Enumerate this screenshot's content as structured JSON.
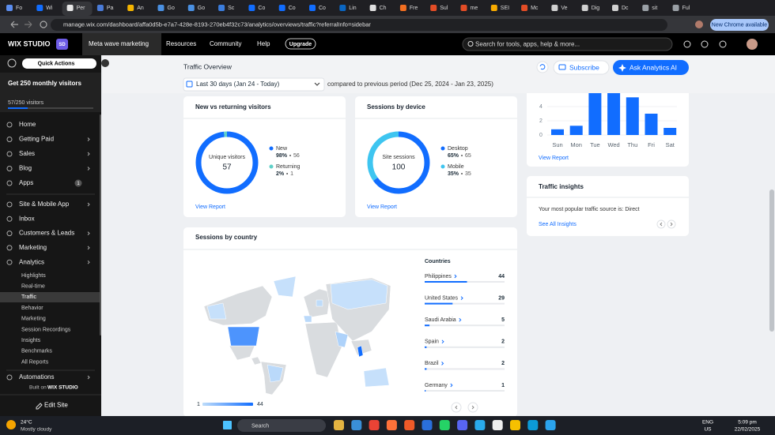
{
  "browser": {
    "tabs": [
      "Fo",
      "Wi",
      "Per",
      "Pa",
      "An",
      "Go",
      "Go",
      "Sc",
      "Co",
      "Co",
      "Co",
      "Lin",
      "Ch",
      "Fre",
      "Sul",
      "me",
      "SEI",
      "Mc",
      "Ve",
      "Dig",
      "Dc",
      "sit",
      "Ful"
    ],
    "url": "manage.wix.com/dashboard/affa0d5b-e7a7-428e-8193-270eb4f32c73/analytics/overviews/traffic?referralInfo=sidebar",
    "update_button": "New Chrome available"
  },
  "topbar": {
    "brand": "WIX STUDIO",
    "workspace": "SD",
    "site": "Meta wave marketing",
    "menu": [
      "Resources",
      "Community",
      "Help"
    ],
    "upgrade": "Upgrade",
    "search": "Search for tools, apps, help & more..."
  },
  "sidebar": {
    "quick_actions": "Quick Actions",
    "goal": "Get 250 monthly visitors",
    "progress": "57/250 visitors",
    "main": [
      "Home",
      "Getting Paid",
      "Sales",
      "Blog",
      "Apps"
    ],
    "apps_badge": "1",
    "business": [
      "Site & Mobile App",
      "Inbox",
      "Customers & Leads",
      "Marketing",
      "Analytics"
    ],
    "analytics": [
      "Highlights",
      "Real-time",
      "Traffic",
      "Behavior",
      "Marketing",
      "Session Recordings",
      "Insights",
      "Benchmarks",
      "All Reports"
    ],
    "more": "Automations",
    "built_on": "Built on",
    "built_brand": "WIX STUDIO",
    "edit": "Edit Site"
  },
  "header": {
    "title": "Traffic Overview",
    "date_range": "Last 30 days (Jan 24 - Today)",
    "comparison": "compared to previous period (Dec 25, 2024 - Jan 23, 2025)",
    "subscribe": "Subscribe",
    "ask_ai": "Ask Analytics AI"
  },
  "visitors": {
    "title": "New vs returning visitors",
    "center_label": "Unique visitors",
    "total": 57,
    "segments": [
      {
        "name": "New",
        "percent": "98%",
        "count": 56,
        "color": "#116dff"
      },
      {
        "name": "Returning",
        "percent": "2%",
        "count": 1,
        "color": "#5fd0c8"
      }
    ],
    "link": "View Report"
  },
  "devices": {
    "title": "Sessions by device",
    "center_label": "Site sessions",
    "total": 100,
    "segments": [
      {
        "name": "Desktop",
        "percent": "65%",
        "count": 65,
        "color": "#116dff"
      },
      {
        "name": "Mobile",
        "percent": "35%",
        "count": 35,
        "color": "#3ec5f0"
      }
    ],
    "link": "View Report"
  },
  "countries": {
    "title": "Sessions by country",
    "list_title": "Countries",
    "rows": [
      {
        "name": "Philippines",
        "count": 44
      },
      {
        "name": "United States",
        "count": 29
      },
      {
        "name": "Saudi Arabia",
        "count": 5
      },
      {
        "name": "Spain",
        "count": 2
      },
      {
        "name": "Brazil",
        "count": 2
      },
      {
        "name": "Germany",
        "count": 1
      }
    ],
    "scale_min": 1,
    "scale_max": 44
  },
  "weekdays": {
    "type": "bar",
    "categories": [
      "Sun",
      "Mon",
      "Tue",
      "Wed",
      "Thu",
      "Fri",
      "Sat"
    ],
    "values": [
      0.8,
      1.3,
      6,
      6,
      5.3,
      3,
      1
    ],
    "ylim": [
      0,
      6
    ],
    "yticks": [
      0,
      2,
      4
    ],
    "color": "#116dff",
    "link": "View Report"
  },
  "insights": {
    "title": "Traffic insights",
    "text": "Your most popular traffic source is: Direct",
    "link": "See All Insights"
  },
  "taskbar": {
    "temperature": "24°C",
    "weather": "Mostly cloudy",
    "search": "Search",
    "language": "ENG",
    "region": "US",
    "time": "5:09 pm",
    "date": "22/02/2025"
  }
}
